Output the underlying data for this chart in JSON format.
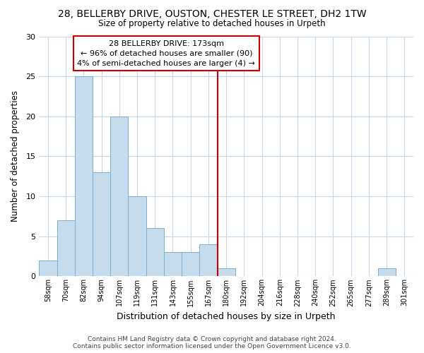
{
  "title": "28, BELLERBY DRIVE, OUSTON, CHESTER LE STREET, DH2 1TW",
  "subtitle": "Size of property relative to detached houses in Urpeth",
  "xlabel": "Distribution of detached houses by size in Urpeth",
  "ylabel": "Number of detached properties",
  "bar_labels": [
    "58sqm",
    "70sqm",
    "82sqm",
    "94sqm",
    "107sqm",
    "119sqm",
    "131sqm",
    "143sqm",
    "155sqm",
    "167sqm",
    "180sqm",
    "192sqm",
    "204sqm",
    "216sqm",
    "228sqm",
    "240sqm",
    "252sqm",
    "265sqm",
    "277sqm",
    "289sqm",
    "301sqm"
  ],
  "bar_heights": [
    2,
    7,
    25,
    13,
    20,
    10,
    6,
    3,
    3,
    4,
    1,
    0,
    0,
    0,
    0,
    0,
    0,
    0,
    0,
    1,
    0
  ],
  "bar_color": "#c6dcec",
  "bar_edge_color": "#7bafd4",
  "highlight_line_color": "#cc0000",
  "ylim": [
    0,
    30
  ],
  "yticks": [
    0,
    5,
    10,
    15,
    20,
    25,
    30
  ],
  "annotation_title": "28 BELLERBY DRIVE: 173sqm",
  "annotation_line1": "← 96% of detached houses are smaller (90)",
  "annotation_line2": "4% of semi-detached houses are larger (4) →",
  "annotation_box_color": "#ffffff",
  "annotation_box_edge": "#cc0000",
  "footer_line1": "Contains HM Land Registry data © Crown copyright and database right 2024.",
  "footer_line2": "Contains public sector information licensed under the Open Government Licence v3.0.",
  "bg_color": "#ffffff",
  "grid_color": "#c8d8e8"
}
